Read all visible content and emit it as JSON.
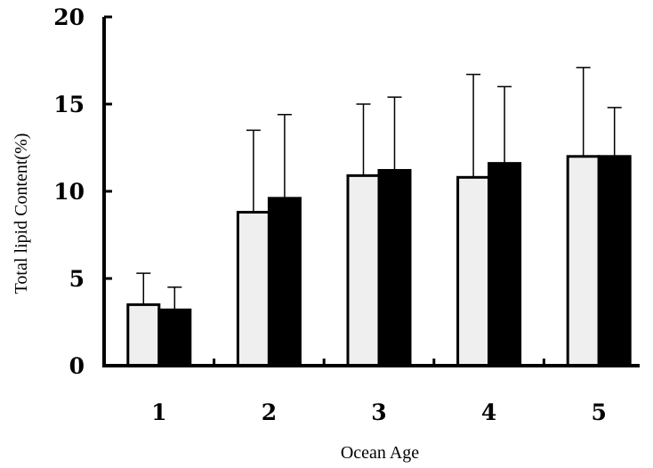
{
  "chart_data": {
    "type": "bar",
    "title": "",
    "xlabel": "Ocean Age",
    "ylabel": "Total lipid Content(%)",
    "categories": [
      "1",
      "2",
      "3",
      "4",
      "5"
    ],
    "ylim": [
      0,
      20
    ],
    "yticks": [
      "0",
      "5",
      "10",
      "15",
      "20"
    ],
    "grid": false,
    "legend": "none",
    "series": [
      {
        "values": [
          3.5,
          8.8,
          10.9,
          10.8,
          12.0
        ],
        "errors": [
          1.8,
          4.7,
          4.1,
          5.9,
          5.1
        ],
        "color": "#efefef"
      },
      {
        "values": [
          3.2,
          9.6,
          11.2,
          11.6,
          12.0
        ],
        "errors": [
          1.3,
          4.8,
          4.2,
          4.4,
          2.8
        ],
        "color": "#000000"
      }
    ]
  }
}
